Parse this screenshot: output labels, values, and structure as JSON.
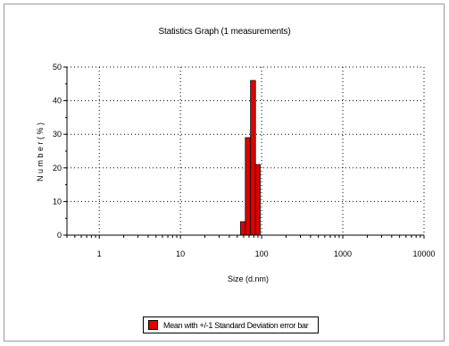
{
  "chart_data": {
    "type": "bar",
    "title": "Statistics Graph (1 measurements)",
    "xlabel": "Size (d.nm)",
    "ylabel": "N u m b e r  ( % )",
    "x_scale": "log",
    "xlim": [
      0.4,
      10000
    ],
    "ylim": [
      0,
      50
    ],
    "x_ticks": [
      1,
      10,
      100,
      1000,
      10000
    ],
    "x_tick_labels": [
      "1",
      "10",
      "100",
      "1000",
      "10000"
    ],
    "y_ticks": [
      0,
      10,
      20,
      30,
      40,
      50
    ],
    "y_tick_labels": [
      "0",
      "10",
      "20",
      "30",
      "40",
      "50"
    ],
    "grid": true,
    "legend_placement": "bottom",
    "bar_color": "#e00000",
    "bars": [
      {
        "x_start": 55,
        "x_end": 63,
        "value": 4
      },
      {
        "x_start": 63,
        "x_end": 73,
        "value": 29
      },
      {
        "x_start": 73,
        "x_end": 84,
        "value": 46
      },
      {
        "x_start": 84,
        "x_end": 96,
        "value": 21
      }
    ],
    "series": [
      {
        "name": "Mean with +/-1 Standard Deviation error bar"
      }
    ]
  }
}
